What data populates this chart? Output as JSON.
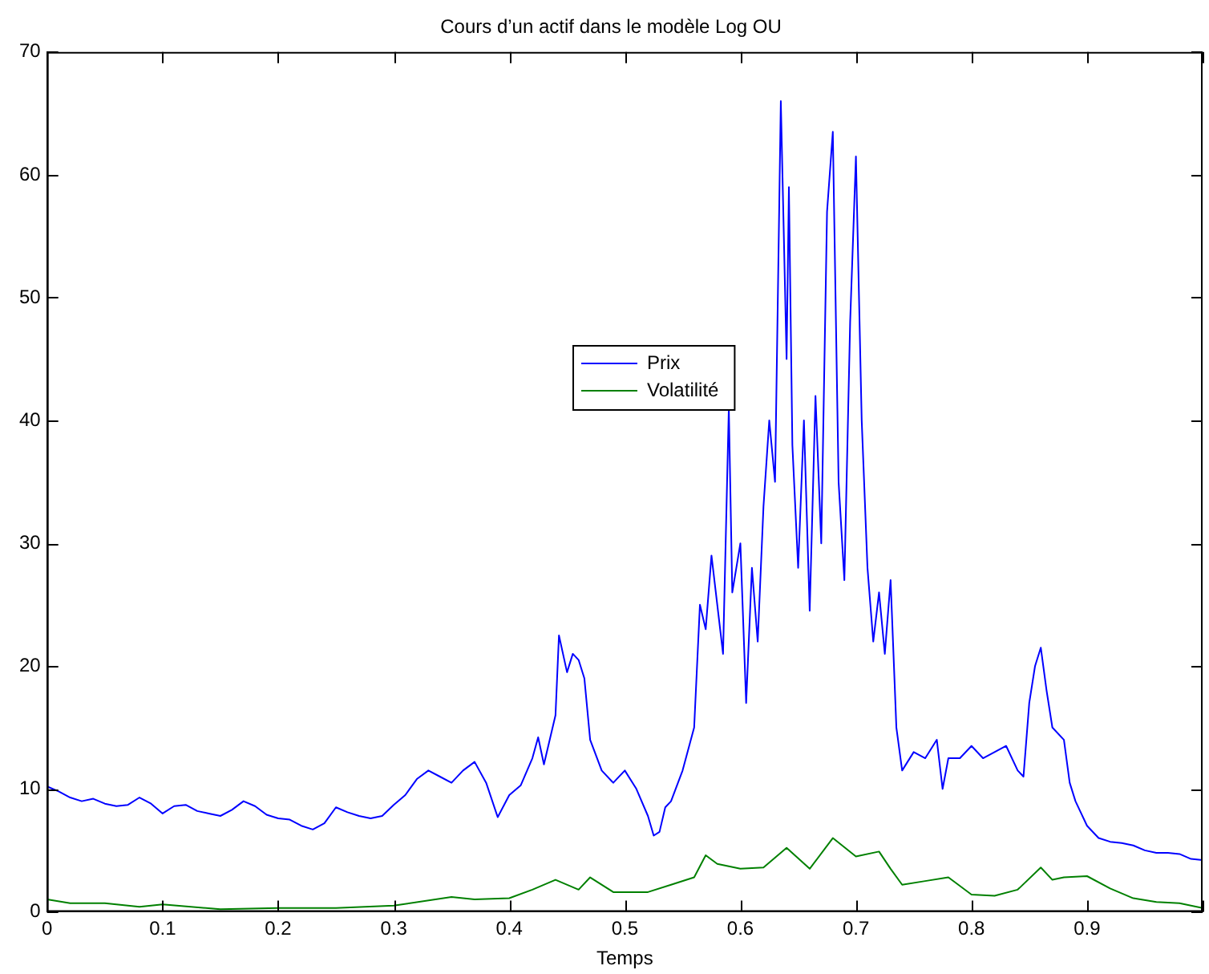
{
  "chart_data": {
    "type": "line",
    "title": "Cours d’un actif dans le modèle Log OU",
    "xlabel": "Temps",
    "xlim": [
      0,
      1
    ],
    "xticks": [
      0,
      0.1,
      0.2,
      0.3,
      0.4,
      0.5,
      0.6,
      0.7,
      0.8,
      0.9,
      {
        "value": 1,
        "label": null
      }
    ],
    "ylim": [
      0,
      70
    ],
    "yticks": [
      0,
      10,
      20,
      30,
      40,
      50,
      60,
      70
    ],
    "grid": false,
    "legend": "center",
    "marker": "none",
    "line_style": "solid",
    "series": [
      {
        "name": "Prix",
        "color": "#0000ff",
        "x": [
          0,
          0.01,
          0.02,
          0.03,
          0.04,
          0.05,
          0.06,
          0.07,
          0.08,
          0.09,
          0.1,
          0.11,
          0.12,
          0.13,
          0.14,
          0.15,
          0.16,
          0.17,
          0.18,
          0.19,
          0.2,
          0.21,
          0.22,
          0.23,
          0.24,
          0.25,
          0.26,
          0.27,
          0.28,
          0.29,
          0.3,
          0.31,
          0.32,
          0.33,
          0.34,
          0.35,
          0.36,
          0.37,
          0.38,
          0.39,
          0.4,
          0.41,
          0.42,
          0.425,
          0.43,
          0.44,
          0.443,
          0.45,
          0.455,
          0.46,
          0.465,
          0.47,
          0.48,
          0.49,
          0.5,
          0.51,
          0.52,
          0.525,
          0.53,
          0.535,
          0.54,
          0.55,
          0.56,
          0.565,
          0.57,
          0.575,
          0.58,
          0.585,
          0.59,
          0.593,
          0.6,
          0.605,
          0.61,
          0.615,
          0.62,
          0.625,
          0.63,
          0.635,
          0.64,
          0.642,
          0.645,
          0.65,
          0.655,
          0.66,
          0.665,
          0.67,
          0.675,
          0.68,
          0.685,
          0.69,
          0.695,
          0.7,
          0.705,
          0.71,
          0.715,
          0.72,
          0.725,
          0.73,
          0.735,
          0.74,
          0.75,
          0.76,
          0.77,
          0.775,
          0.78,
          0.79,
          0.8,
          0.81,
          0.82,
          0.83,
          0.84,
          0.845,
          0.85,
          0.855,
          0.86,
          0.865,
          0.87,
          0.88,
          0.885,
          0.89,
          0.9,
          0.91,
          0.92,
          0.93,
          0.94,
          0.95,
          0.96,
          0.97,
          0.98,
          0.99,
          1
        ],
        "values": [
          10.2,
          9.8,
          9.3,
          9,
          9.2,
          8.8,
          8.6,
          8.7,
          9.3,
          8.8,
          8,
          8.6,
          8.7,
          8.2,
          8,
          7.8,
          8.3,
          9,
          8.6,
          7.9,
          7.6,
          7.5,
          7,
          6.7,
          7.2,
          8.5,
          8.1,
          7.8,
          7.6,
          7.8,
          8.7,
          9.5,
          10.8,
          11.5,
          11,
          10.5,
          11.5,
          12.2,
          10.5,
          7.7,
          9.5,
          10.3,
          12.5,
          14.2,
          12,
          16,
          22.5,
          19.5,
          21,
          20.5,
          19,
          14,
          11.5,
          10.5,
          11.5,
          10,
          7.8,
          6.2,
          6.5,
          8.5,
          9,
          11.5,
          15,
          25,
          23,
          29,
          25,
          21,
          41,
          26,
          30,
          17,
          28,
          22,
          33,
          40,
          35,
          66,
          45,
          59,
          38,
          28,
          40,
          24.5,
          42,
          30,
          57,
          63.5,
          35,
          27,
          48,
          61.5,
          40,
          28,
          22,
          26,
          21,
          27,
          15,
          11.5,
          13,
          12.5,
          14,
          10,
          12.5,
          12.5,
          13.5,
          12.5,
          13,
          13.5,
          11.5,
          11,
          17,
          20,
          21.5,
          18,
          15,
          14,
          10.5,
          9,
          7,
          6,
          5.7,
          5.6,
          5.4,
          5,
          4.8,
          4.8,
          4.7,
          4.3,
          4.2
        ]
      },
      {
        "name": "Volatilité",
        "color": "#008000",
        "x": [
          0,
          0.02,
          0.05,
          0.08,
          0.1,
          0.15,
          0.2,
          0.25,
          0.3,
          0.35,
          0.37,
          0.4,
          0.42,
          0.44,
          0.46,
          0.47,
          0.49,
          0.52,
          0.54,
          0.56,
          0.57,
          0.58,
          0.6,
          0.62,
          0.64,
          0.66,
          0.68,
          0.7,
          0.72,
          0.73,
          0.74,
          0.76,
          0.78,
          0.8,
          0.82,
          0.84,
          0.86,
          0.87,
          0.88,
          0.9,
          0.92,
          0.94,
          0.96,
          0.98,
          1
        ],
        "values": [
          1,
          0.7,
          0.7,
          0.4,
          0.6,
          0.2,
          0.3,
          0.3,
          0.5,
          1.2,
          1,
          1.1,
          1.8,
          2.6,
          1.8,
          2.8,
          1.6,
          1.6,
          2.2,
          2.8,
          4.6,
          3.9,
          3.5,
          3.6,
          5.2,
          3.5,
          6,
          4.5,
          4.9,
          3.5,
          2.2,
          2.5,
          2.8,
          1.4,
          1.3,
          1.8,
          3.6,
          2.6,
          2.8,
          2.9,
          1.9,
          1.1,
          0.8,
          0.7,
          0.3
        ]
      }
    ]
  }
}
